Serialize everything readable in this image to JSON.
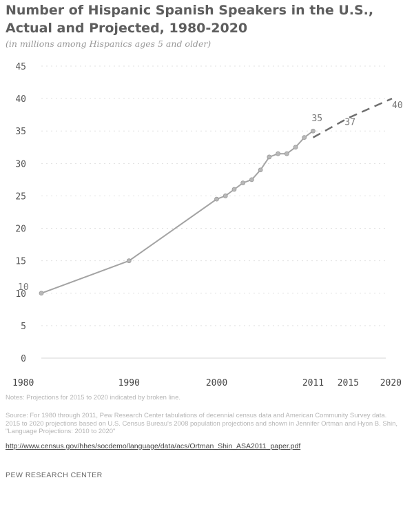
{
  "title": "Number of Hispanic Spanish Speakers in the U.S., Actual and Projected, 1980-2020",
  "subtitle": "(in millions among Hispanics ages 5 and older)",
  "notes": "Notes: Projections for 2015 to 2020 indicated by broken line.",
  "source": "Source: For 1980 through 2011, Pew Research Center tabulations of decennial census data and American Community Survey data. 2015 to 2020 projections based on U.S. Census Bureau's 2008 population projections and shown in Jennifer Ortman and Hyon B. Shin, \"Language Projections: 2010 to 2020\"",
  "source_link": "http://www.census.gov/hhes/socdemo/language/data/acs/Ortman_Shin_ASA2011_paper.pdf",
  "organization": "PEW RESEARCH CENTER",
  "chart_data": {
    "type": "line",
    "title": "Number of Hispanic Spanish Speakers in the U.S., Actual and Projected, 1980-2020",
    "xlabel": "",
    "ylabel": "",
    "ylim": [
      0,
      45
    ],
    "xlim": [
      1980,
      2020
    ],
    "y_ticks": [
      0,
      5,
      10,
      15,
      20,
      25,
      30,
      35,
      40,
      45
    ],
    "x_ticks": [
      "1980",
      "1990",
      "2000",
      "2011",
      "2015",
      "2020"
    ],
    "grid": true,
    "series": [
      {
        "style": "solid",
        "color": "#a3a3a3",
        "markers": true,
        "x": [
          1980,
          1990,
          2000,
          2001,
          2002,
          2003,
          2004,
          2005,
          2006,
          2007,
          2008,
          2009,
          2010,
          2011
        ],
        "y": [
          10,
          15,
          24.5,
          25,
          26,
          27,
          27.5,
          29,
          31,
          31.5,
          31.5,
          32.5,
          34,
          35
        ]
      },
      {
        "style": "dashed",
        "color": "#6e6e6e",
        "markers": false,
        "x": [
          2011,
          2015,
          2020
        ],
        "y": [
          34,
          37,
          40
        ]
      }
    ],
    "data_labels": [
      {
        "x": 1980,
        "y": 10,
        "text": "10"
      },
      {
        "x": 2011,
        "y": 35,
        "text": "35"
      },
      {
        "x": 2015,
        "y": 37,
        "text": "37"
      },
      {
        "x": 2020,
        "y": 40,
        "text": "40"
      }
    ]
  }
}
